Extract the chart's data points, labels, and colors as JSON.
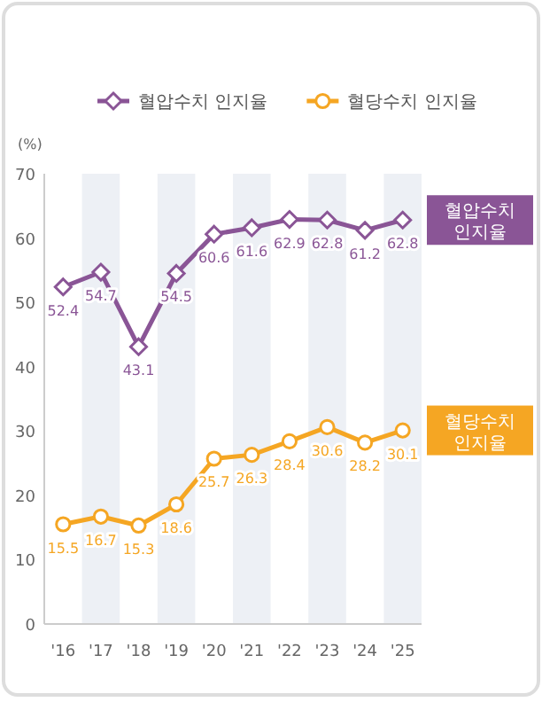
{
  "chart_data": {
    "type": "line",
    "ylabel": "(%)",
    "categories": [
      "'16",
      "'17",
      "'18",
      "'19",
      "'20",
      "'21",
      "'22",
      "'23",
      "'24",
      "'25"
    ],
    "series": [
      {
        "name": "혈압수치 인지율",
        "color": "#8a5596",
        "marker": "diamond",
        "values": [
          52.4,
          54.7,
          43.1,
          54.5,
          60.6,
          61.6,
          62.9,
          62.8,
          61.2,
          62.8
        ]
      },
      {
        "name": "혈당수치 인지율",
        "color": "#f5a623",
        "marker": "circle",
        "values": [
          15.5,
          16.7,
          15.3,
          18.6,
          25.7,
          26.3,
          28.4,
          30.6,
          28.2,
          30.1
        ]
      }
    ],
    "bands": [
      {
        "axis": "x",
        "from": "'17",
        "to": "'17",
        "color": "#edf0f5"
      },
      {
        "axis": "x",
        "from": "'19",
        "to": "'19",
        "color": "#edf0f5"
      },
      {
        "axis": "x",
        "from": "'21",
        "to": "'21",
        "color": "#edf0f5"
      },
      {
        "axis": "x",
        "from": "'23",
        "to": "'23",
        "color": "#edf0f5"
      },
      {
        "axis": "x",
        "from": "'25",
        "to": "'25",
        "color": "#edf0f5"
      }
    ],
    "ylim": [
      0,
      70
    ],
    "yticks": [
      0,
      10,
      20,
      30,
      40,
      50,
      60,
      70
    ],
    "grid": false,
    "legend": "top",
    "data_labels": true,
    "line_style": "solid"
  }
}
